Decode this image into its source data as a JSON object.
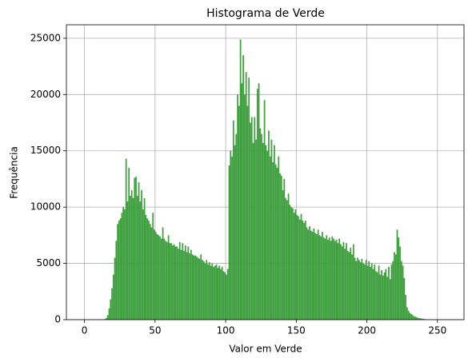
{
  "chart_data": {
    "type": "histogram",
    "title": "Histograma de Verde",
    "x_label": "Valor em Verde",
    "y_label": "Frequência",
    "color": "#40a040",
    "grid": true,
    "bins": [
      0,
      1,
      2,
      3,
      4,
      5,
      6,
      7,
      8,
      9,
      10,
      11,
      12,
      13,
      14,
      15,
      16,
      17,
      18,
      19,
      20,
      21,
      22,
      23,
      24,
      25,
      26,
      27,
      28,
      29,
      30,
      31,
      32,
      33,
      34,
      35,
      36,
      37,
      38,
      39,
      40,
      41,
      42,
      43,
      44,
      45,
      46,
      47,
      48,
      49,
      50,
      51,
      52,
      53,
      54,
      55,
      56,
      57,
      58,
      59,
      60,
      61,
      62,
      63,
      64,
      65,
      66,
      67,
      68,
      69,
      70,
      71,
      72,
      73,
      74,
      75,
      76,
      77,
      78,
      79,
      80,
      81,
      82,
      83,
      84,
      85,
      86,
      87,
      88,
      89,
      90,
      91,
      92,
      93,
      94,
      95,
      96,
      97,
      98,
      99,
      100,
      101,
      102,
      103,
      104,
      105,
      106,
      107,
      108,
      109,
      110,
      111,
      112,
      113,
      114,
      115,
      116,
      117,
      118,
      119,
      120,
      121,
      122,
      123,
      124,
      125,
      126,
      127,
      128,
      129,
      130,
      131,
      132,
      133,
      134,
      135,
      136,
      137,
      138,
      139,
      140,
      141,
      142,
      143,
      144,
      145,
      146,
      147,
      148,
      149,
      150,
      151,
      152,
      153,
      154,
      155,
      156,
      157,
      158,
      159,
      160,
      161,
      162,
      163,
      164,
      165,
      166,
      167,
      168,
      169,
      170,
      171,
      172,
      173,
      174,
      175,
      176,
      177,
      178,
      179,
      180,
      181,
      182,
      183,
      184,
      185,
      186,
      187,
      188,
      189,
      190,
      191,
      192,
      193,
      194,
      195,
      196,
      197,
      198,
      199,
      200,
      201,
      202,
      203,
      204,
      205,
      206,
      207,
      208,
      209,
      210,
      211,
      212,
      213,
      214,
      215,
      216,
      217,
      218,
      219,
      220,
      221,
      222,
      223,
      224,
      225,
      226,
      227,
      228,
      229,
      230,
      231,
      232,
      233,
      234,
      235,
      236,
      237,
      238,
      239,
      240,
      241,
      242,
      243,
      244,
      245,
      246,
      247,
      248,
      249,
      250,
      251,
      252,
      253,
      254,
      255,
      256
    ],
    "counts": [
      0,
      0,
      0,
      0,
      0,
      0,
      0,
      0,
      0,
      0,
      0,
      0,
      0,
      0,
      50,
      150,
      400,
      1000,
      1800,
      2800,
      4000,
      5500,
      7000,
      8500,
      8800,
      9000,
      9500,
      10000,
      9800,
      14300,
      10500,
      13500,
      11000,
      11500,
      10800,
      12600,
      12700,
      11000,
      12200,
      10500,
      11500,
      9800,
      10800,
      9300,
      9000,
      8800,
      8500,
      8200,
      9500,
      8000,
      7800,
      7600,
      7500,
      7400,
      7200,
      8200,
      7200,
      7000,
      6900,
      7500,
      6800,
      6800,
      6600,
      6700,
      6500,
      6500,
      6300,
      6900,
      6200,
      6800,
      6100,
      6600,
      6000,
      6500,
      5900,
      6200,
      5800,
      5700,
      5700,
      5600,
      5500,
      5400,
      5800,
      5300,
      5200,
      5000,
      5300,
      4900,
      5100,
      4800,
      5000,
      4700,
      4800,
      4900,
      4600,
      4800,
      4500,
      4700,
      4300,
      4200,
      4000,
      4500,
      13700,
      15000,
      14500,
      17700,
      15500,
      16500,
      20000,
      19000,
      24900,
      21000,
      23500,
      20000,
      22000,
      19000,
      21500,
      17500,
      18000,
      15700,
      18000,
      16000,
      20500,
      21000,
      17000,
      16500,
      15700,
      19500,
      15500,
      15000,
      16800,
      14500,
      16000,
      14000,
      15500,
      13800,
      13500,
      14500,
      13000,
      12800,
      11500,
      12500,
      10800,
      10600,
      11200,
      10200,
      10000,
      9900,
      9500,
      9800,
      9300,
      9200,
      8900,
      9400,
      8800,
      8600,
      8800,
      8200,
      8000,
      8300,
      7900,
      7800,
      8100,
      7700,
      7600,
      8000,
      7500,
      7400,
      7800,
      7300,
      7200,
      7500,
      7100,
      7300,
      7000,
      7400,
      7200,
      7000,
      7100,
      6800,
      7200,
      6700,
      6500,
      6900,
      6300,
      6800,
      6100,
      6000,
      6400,
      5800,
      6700,
      5500,
      5200,
      5500,
      5300,
      5100,
      5400,
      5000,
      4900,
      5300,
      4800,
      5200,
      4700,
      5000,
      4500,
      4900,
      4300,
      4200,
      4800,
      4000,
      4400,
      3900,
      4200,
      4500,
      3800,
      4700,
      3600,
      4900,
      5200,
      6000,
      5800,
      8000,
      7300,
      6500,
      5200,
      4800,
      3700,
      2200,
      1100,
      800,
      600,
      500,
      400,
      300,
      250,
      200,
      150,
      120,
      100,
      80,
      60,
      40,
      20,
      10,
      0,
      0,
      0,
      0,
      0,
      0,
      0,
      0,
      0,
      0,
      0,
      0
    ],
    "xlim": [
      -12.8,
      268.8
    ],
    "xticks": [
      0,
      50,
      100,
      150,
      200,
      250
    ],
    "ylim": [
      0,
      26200
    ],
    "yticks": [
      0,
      5000,
      10000,
      15000,
      20000,
      25000
    ]
  }
}
